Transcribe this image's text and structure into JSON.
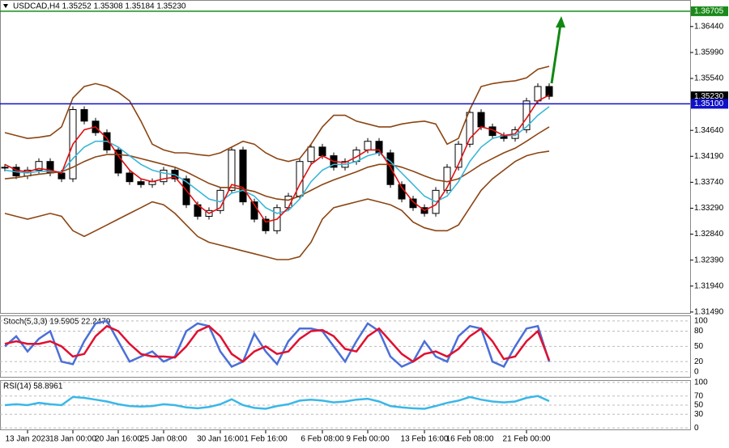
{
  "chart_data": [
    {
      "type": "candlestick",
      "title": "USDCAD,H4  1.35252 1.35308 1.35184 1.35230",
      "categories": [
        null,
        null,
        "13 Jan 2023",
        null,
        null,
        null,
        "18 Jan 00:00",
        null,
        null,
        null,
        "20 Jan 16:00",
        null,
        null,
        null,
        "25 Jan 08:00",
        null,
        null,
        null,
        null,
        "30 Jan 16:00",
        null,
        null,
        null,
        "1 Feb 16:00",
        null,
        null,
        null,
        null,
        "6 Feb 08:00",
        null,
        null,
        null,
        "9 Feb 00:00",
        null,
        null,
        null,
        null,
        "13 Feb 16:00",
        null,
        null,
        null,
        "16 Feb 08:00",
        null,
        null,
        null,
        null,
        "21 Feb 00:00",
        null,
        null
      ],
      "close": [
        1.34,
        1.3385,
        1.3395,
        1.341,
        1.339,
        1.338,
        1.35,
        1.348,
        1.346,
        1.343,
        1.339,
        1.3375,
        1.337,
        1.3375,
        1.3395,
        1.338,
        1.3335,
        1.3315,
        1.3325,
        1.336,
        1.343,
        1.334,
        1.331,
        1.329,
        1.333,
        1.335,
        1.341,
        1.3435,
        1.342,
        1.34,
        1.341,
        1.343,
        1.3445,
        1.3425,
        1.337,
        1.3345,
        1.333,
        1.332,
        1.336,
        1.34,
        1.344,
        1.3495,
        1.347,
        1.3455,
        1.345,
        1.3465,
        1.3515,
        1.354,
        1.3523
      ],
      "series": [
        {
          "color": "#8b4513",
          "values": [
            1.346,
            1.3455,
            1.345,
            1.3452,
            1.3455,
            1.347,
            1.352,
            1.354,
            1.3545,
            1.354,
            1.353,
            1.3515,
            1.348,
            1.344,
            1.343,
            1.3425,
            1.3425,
            1.3422,
            1.342,
            1.3425,
            1.3435,
            1.3445,
            1.344,
            1.3425,
            1.3415,
            1.341,
            1.3415,
            1.344,
            1.347,
            1.349,
            1.349,
            1.348,
            1.3475,
            1.347,
            1.347,
            1.3475,
            1.3478,
            1.348,
            1.3475,
            1.344,
            1.345,
            1.35,
            1.354,
            1.3545,
            1.3548,
            1.355,
            1.3555,
            1.357,
            1.3575
          ]
        },
        {
          "color": "#8b4513",
          "values": [
            1.338,
            1.3382,
            1.3385,
            1.3388,
            1.339,
            1.3392,
            1.34,
            1.341,
            1.3418,
            1.3422,
            1.3422,
            1.342,
            1.3415,
            1.341,
            1.3405,
            1.34,
            1.3392,
            1.3382,
            1.3372,
            1.3365,
            1.3365,
            1.3362,
            1.3358,
            1.335,
            1.3345,
            1.3343,
            1.335,
            1.336,
            1.337,
            1.3378,
            1.3385,
            1.3392,
            1.34,
            1.3405,
            1.3405,
            1.34,
            1.3393,
            1.3385,
            1.3378,
            1.3375,
            1.338,
            1.3392,
            1.3405,
            1.3415,
            1.3425,
            1.3433,
            1.3445,
            1.3458,
            1.347
          ]
        },
        {
          "color": "#8b4513",
          "values": [
            1.332,
            1.3315,
            1.331,
            1.3315,
            1.332,
            1.3315,
            1.329,
            1.328,
            1.329,
            1.33,
            1.331,
            1.332,
            1.333,
            1.334,
            1.3335,
            1.332,
            1.33,
            1.328,
            1.327,
            1.3265,
            1.326,
            1.3255,
            1.325,
            1.3245,
            1.324,
            1.324,
            1.3245,
            1.327,
            1.331,
            1.333,
            1.3335,
            1.334,
            1.3345,
            1.334,
            1.3335,
            1.3325,
            1.3305,
            1.3295,
            1.329,
            1.329,
            1.33,
            1.333,
            1.336,
            1.338,
            1.3395,
            1.341,
            1.342,
            1.3425,
            1.3428
          ]
        },
        {
          "color": "#3ab7d8",
          "values": [
            1.3395,
            1.3392,
            1.339,
            1.3393,
            1.3393,
            1.3392,
            1.3415,
            1.3435,
            1.3445,
            1.3445,
            1.3435,
            1.342,
            1.3405,
            1.3395,
            1.339,
            1.3387,
            1.3375,
            1.336,
            1.3345,
            1.334,
            1.3355,
            1.336,
            1.335,
            1.333,
            1.332,
            1.3325,
            1.3345,
            1.3375,
            1.3395,
            1.3405,
            1.3405,
            1.341,
            1.342,
            1.3425,
            1.341,
            1.339,
            1.337,
            1.335,
            1.334,
            1.335,
            1.3375,
            1.341,
            1.3435,
            1.345,
            1.3455,
            1.3455,
            1.347,
            1.349,
            1.3505
          ]
        },
        {
          "color": "#e01010",
          "values": [
            1.3405,
            1.3395,
            1.3392,
            1.3398,
            1.3395,
            1.339,
            1.344,
            1.3465,
            1.347,
            1.345,
            1.342,
            1.3395,
            1.338,
            1.3375,
            1.338,
            1.3383,
            1.336,
            1.3335,
            1.332,
            1.333,
            1.337,
            1.3365,
            1.3335,
            1.3305,
            1.331,
            1.333,
            1.337,
            1.3405,
            1.342,
            1.341,
            1.3408,
            1.3418,
            1.343,
            1.343,
            1.34,
            1.3365,
            1.334,
            1.3325,
            1.3335,
            1.3365,
            1.3405,
            1.345,
            1.347,
            1.3465,
            1.3455,
            1.3458,
            1.3485,
            1.3515,
            1.3525
          ]
        }
      ],
      "ylim": [
        1.3146,
        1.369
      ],
      "yticks": [
        {
          "value": 1.3644,
          "label": "1.36440"
        },
        {
          "value": 1.3599,
          "label": "1.35990"
        },
        {
          "value": 1.3554,
          "label": "1.35540"
        },
        {
          "value": 1.3464,
          "label": "1.34640"
        },
        {
          "value": 1.3419,
          "label": "1.34190"
        },
        {
          "value": 1.3374,
          "label": "1.33740"
        },
        {
          "value": 1.3329,
          "label": "1.33290"
        },
        {
          "value": 1.3284,
          "label": "1.32840"
        },
        {
          "value": 1.3239,
          "label": "1.32390"
        },
        {
          "value": 1.3194,
          "label": "1.31940"
        },
        {
          "value": 1.3149,
          "label": "1.31490"
        }
      ],
      "levels": [
        {
          "value": 1.36705,
          "label": "1.36705",
          "color": "#1a8a1a",
          "line": true
        },
        {
          "value": 1.3523,
          "label": "1.35230",
          "color": "#000000",
          "line": false
        },
        {
          "value": 1.351,
          "label": "1.35100",
          "color": "#1010c8",
          "line": true
        }
      ]
    },
    {
      "type": "line",
      "title": "Stoch(5,3,3) 19.5905 22.2479",
      "series": [
        {
          "color": "#4a6fd8",
          "values": [
            50,
            70,
            40,
            65,
            80,
            20,
            15,
            60,
            95,
            100,
            60,
            20,
            30,
            40,
            20,
            30,
            80,
            95,
            90,
            40,
            10,
            20,
            75,
            40,
            15,
            60,
            85,
            85,
            80,
            50,
            20,
            60,
            95,
            80,
            30,
            10,
            20,
            60,
            30,
            20,
            70,
            90,
            85,
            20,
            10,
            50,
            85,
            90,
            19.5905
          ]
        },
        {
          "color": "#e01030",
          "values": [
            55,
            60,
            55,
            55,
            60,
            50,
            30,
            35,
            70,
            90,
            80,
            55,
            35,
            30,
            30,
            28,
            50,
            80,
            90,
            70,
            35,
            20,
            40,
            50,
            35,
            40,
            65,
            80,
            82,
            70,
            45,
            40,
            70,
            85,
            60,
            35,
            20,
            35,
            40,
            30,
            45,
            70,
            85,
            60,
            25,
            30,
            60,
            80,
            22.2479
          ]
        }
      ],
      "ylim": [
        -10,
        111
      ],
      "yticks": [
        100,
        80,
        50,
        20,
        0
      ]
    },
    {
      "type": "line",
      "title": "RSI(14) 58.8961",
      "series": [
        {
          "color": "#3ab7e8",
          "values": [
            50,
            52,
            50,
            55,
            52,
            50,
            68,
            66,
            62,
            58,
            52,
            48,
            47,
            48,
            52,
            50,
            45,
            43,
            46,
            52,
            63,
            50,
            44,
            42,
            48,
            52,
            60,
            62,
            60,
            56,
            58,
            62,
            64,
            58,
            48,
            45,
            43,
            42,
            48,
            55,
            60,
            68,
            62,
            58,
            56,
            58,
            66,
            70,
            58.8961
          ]
        }
      ],
      "ylim": [
        -5,
        105
      ],
      "yticks": [
        100,
        70,
        50,
        30,
        0
      ]
    }
  ]
}
